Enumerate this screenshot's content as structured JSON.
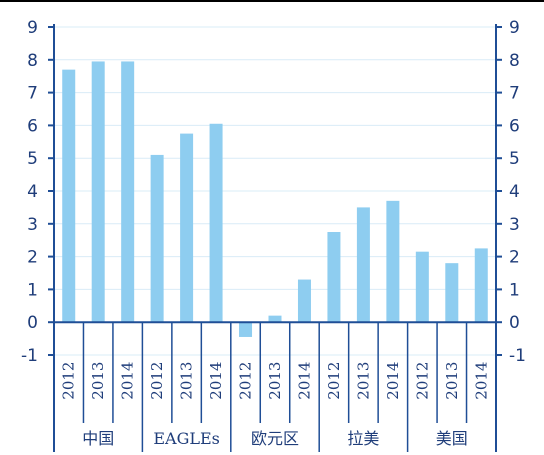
{
  "colors": {
    "bar": "#8ecdf0",
    "axis": "#1f4e96",
    "grid": "#d9ecf7",
    "text": "#1f3d7a",
    "border": "#000000"
  },
  "chart_data": {
    "type": "bar",
    "title": "",
    "xlabel": "",
    "ylabel": "",
    "ylim": [
      -1,
      9
    ],
    "yticks": [
      "-1",
      "0",
      "1",
      "2",
      "3",
      "4",
      "5",
      "6",
      "7",
      "8",
      "9"
    ],
    "grid": true,
    "legend": "none",
    "dual_y_axis": true,
    "groups": [
      {
        "label": "中国",
        "years": [
          "2012",
          "2013",
          "2014"
        ],
        "values": [
          7.7,
          7.95,
          7.95
        ]
      },
      {
        "label": "EAGLEs",
        "years": [
          "2012",
          "2013",
          "2014"
        ],
        "values": [
          5.1,
          5.75,
          6.05
        ]
      },
      {
        "label": "欧元区",
        "years": [
          "2012",
          "2013",
          "2014"
        ],
        "values": [
          -0.45,
          0.2,
          1.3
        ]
      },
      {
        "label": "拉美",
        "years": [
          "2012",
          "2013",
          "2014"
        ],
        "values": [
          2.75,
          3.5,
          3.7
        ]
      },
      {
        "label": "美国",
        "years": [
          "2012",
          "2013",
          "2014"
        ],
        "values": [
          2.15,
          1.8,
          2.25
        ]
      }
    ]
  }
}
